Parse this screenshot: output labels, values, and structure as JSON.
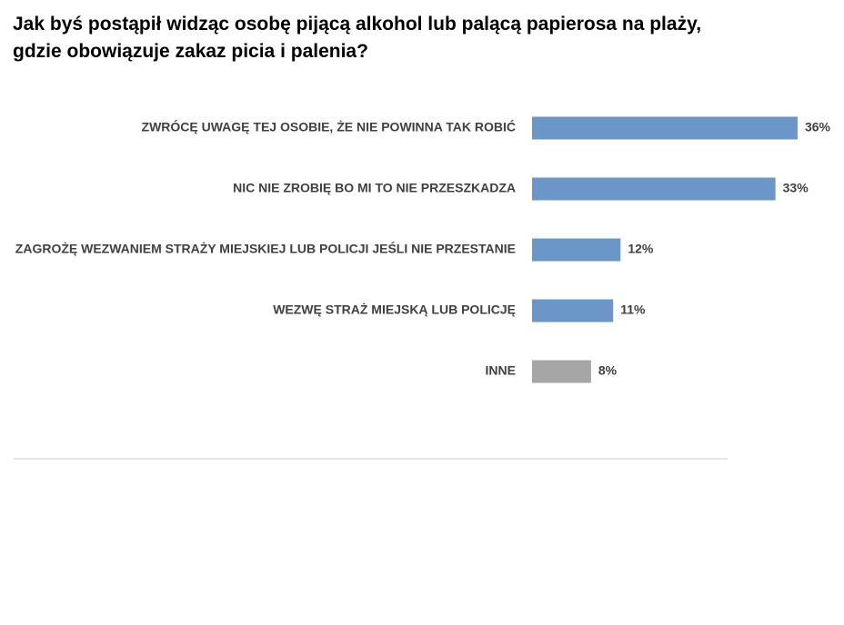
{
  "chart_data": {
    "type": "barh",
    "title": "Jak byś postąpił widząc osobę pijącą alkohol lub palącą papierosa na plaży,\ngdzie obowiązuje zakaz picia i palenia?",
    "categories": [
      "ZWRÓCĘ UWAGĘ TEJ OSOBIE, ŻE NIE POWINNA TAK ROBIĆ",
      "NIC NIE ZROBIĘ BO MI TO NIE PRZESZKADZA",
      "ZAGROŻĘ WEZWANIEM STRAŻY MIEJSKIEJ LUB POLICJI JEŚLI NIE PRZESTANIE",
      "WEZWĘ STRAŻ MIEJSKĄ LUB POLICJĘ",
      "INNE"
    ],
    "values": [
      36,
      33,
      12,
      11,
      8
    ],
    "value_labels": [
      "36%",
      "33%",
      "12%",
      "11%",
      "8%"
    ],
    "colors": [
      "#6a96c8",
      "#6a96c8",
      "#6a96c8",
      "#6a96c8",
      "#a6a6a6"
    ]
  }
}
